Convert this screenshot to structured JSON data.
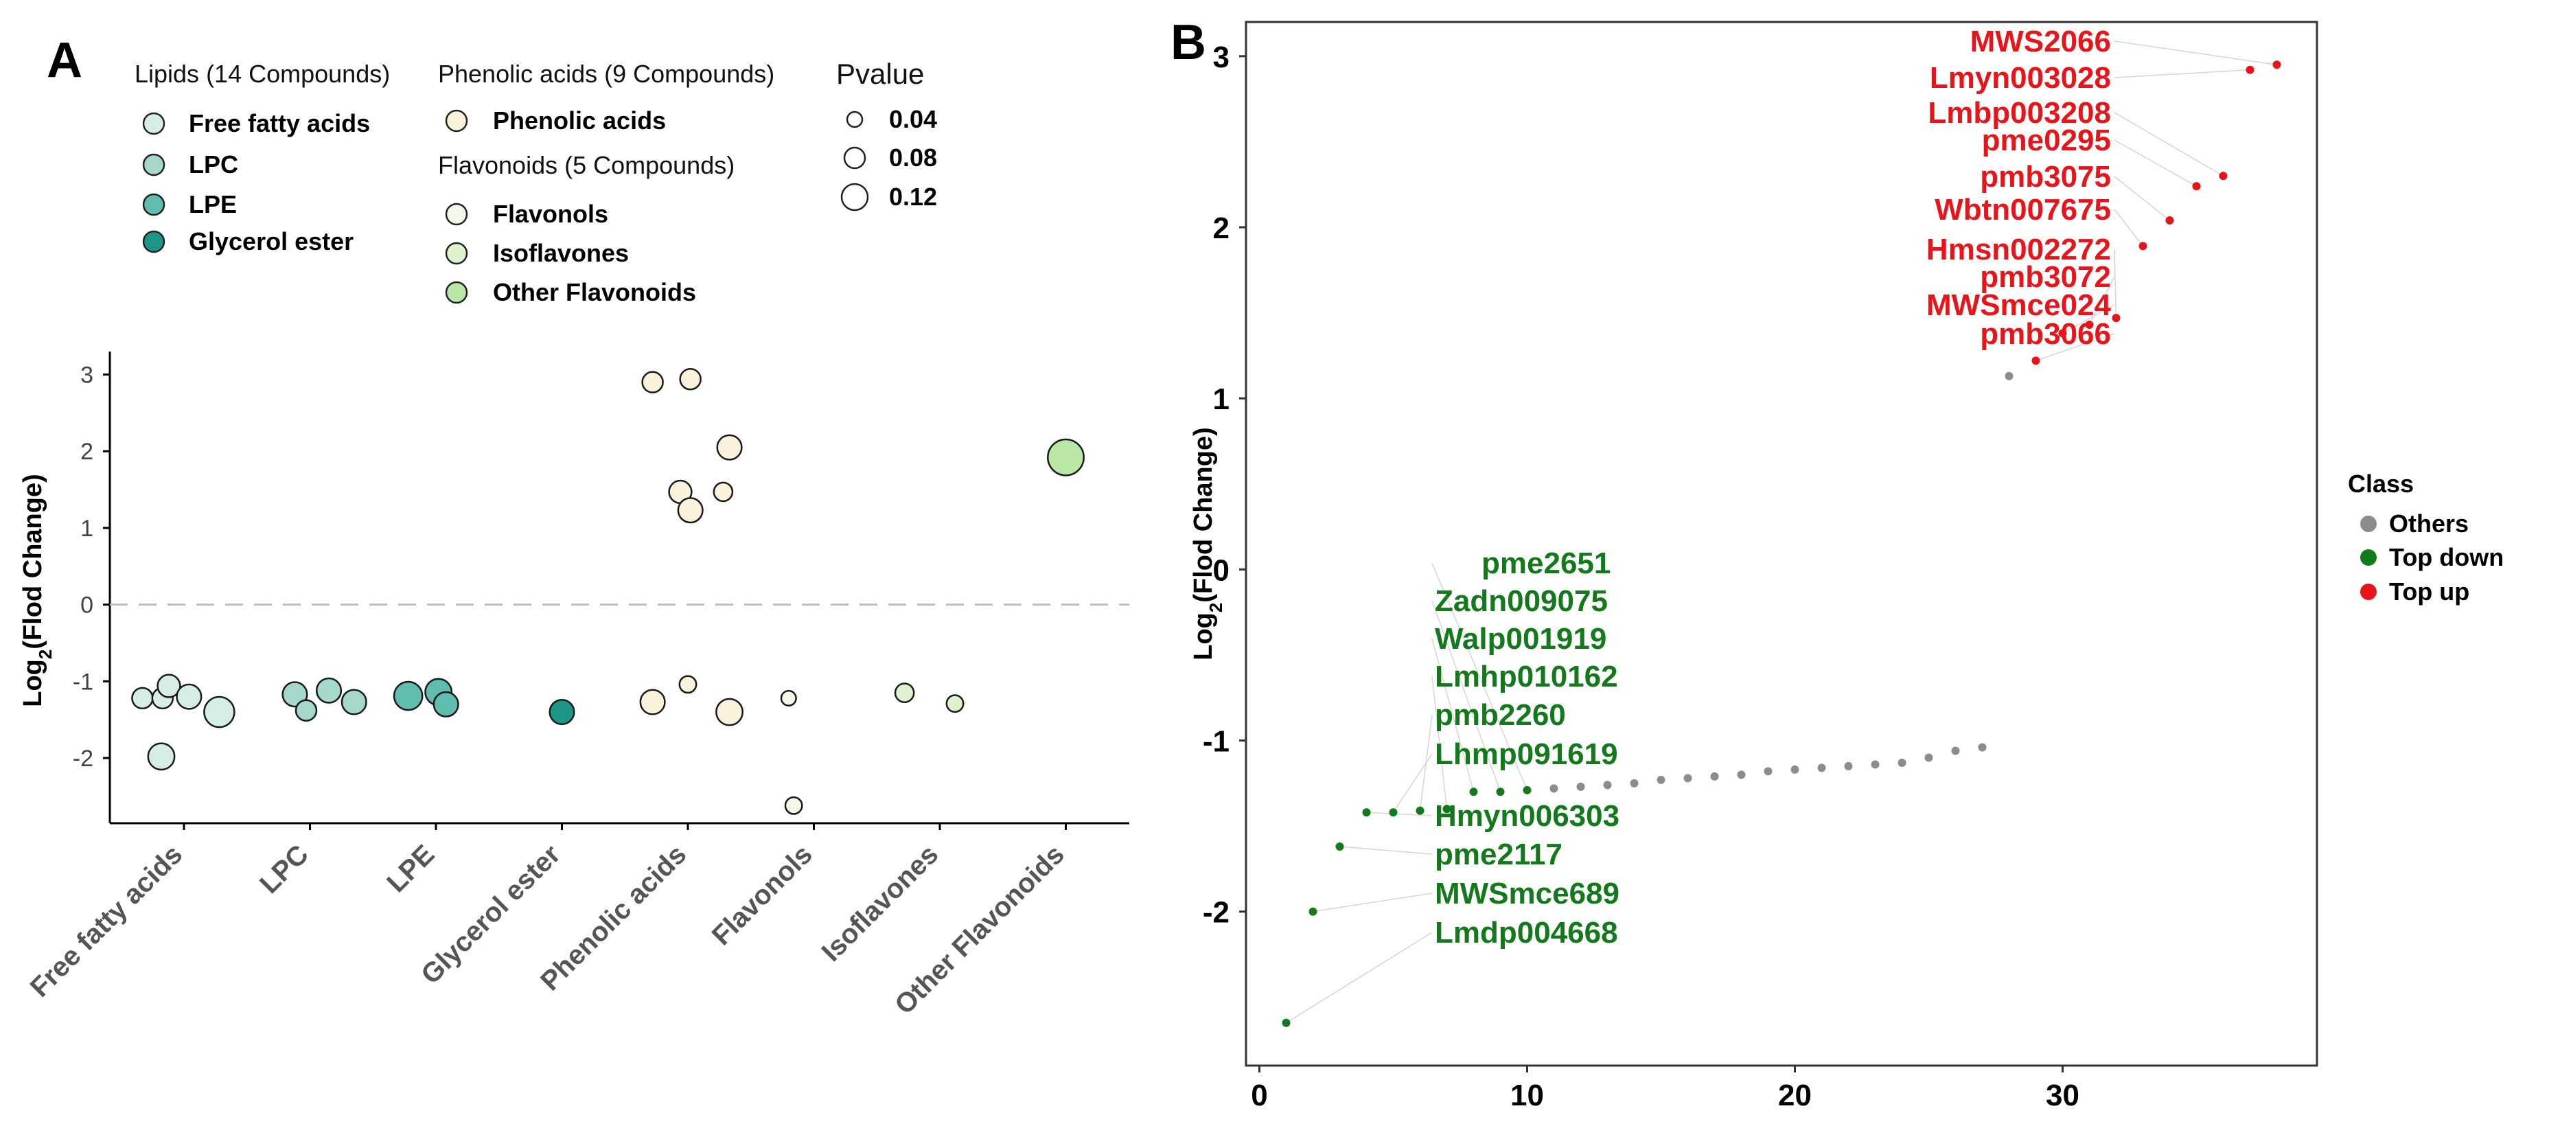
{
  "chart_data": [
    {
      "panel": "A",
      "type": "scatter",
      "ylabel": "Log2(Flod Change)",
      "ylabel_main": "Log",
      "ylabel_sub": "2",
      "ylabel_rest": "(Flod Change)",
      "ylim": [
        -2.85,
        3.3
      ],
      "yticks": [
        -2,
        -1,
        0,
        1,
        2,
        3
      ],
      "reference_line_y": 0,
      "categories": [
        "Free fatty acids",
        "LPC",
        "LPE",
        "Glycerol ester",
        "Phenolic acids",
        "Flavonols",
        "Isoflavones",
        "Other Flavonoids"
      ],
      "legend_groups": [
        {
          "title": "Lipids (14 Compounds)",
          "items": [
            {
              "label": "Free fatty acids",
              "color": "#d6ede6"
            },
            {
              "label": "LPC",
              "color": "#a6d7cc"
            },
            {
              "label": "LPE",
              "color": "#5fbcaf"
            },
            {
              "label": "Glycerol ester",
              "color": "#1c9687"
            }
          ]
        },
        {
          "title": "Phenolic acids (9 Compounds)",
          "items": [
            {
              "label": "Phenolic acids",
              "color": "#fbf2dc"
            }
          ]
        },
        {
          "title": "Flavonoids (5 Compounds)",
          "items": [
            {
              "label": "Flavonols",
              "color": "#f1f9ea"
            },
            {
              "label": "Isoflavones",
              "color": "#dff2cf"
            },
            {
              "label": "Other Flavonoids",
              "color": "#b9e7a5"
            }
          ]
        }
      ],
      "size_legend": {
        "title": "Pvalue",
        "items": [
          {
            "label": "0.04",
            "value": 0.04
          },
          {
            "label": "0.08",
            "value": 0.08
          },
          {
            "label": "0.12",
            "value": 0.12
          }
        ]
      },
      "points": [
        {
          "category": "Free fatty acids",
          "offset": -0.33,
          "y": -1.22,
          "p": 0.05,
          "color": "#d6ede6"
        },
        {
          "category": "Free fatty acids",
          "offset": -0.17,
          "y": -1.22,
          "p": 0.05,
          "color": "#d6ede6"
        },
        {
          "category": "Free fatty acids",
          "offset": -0.12,
          "y": -1.06,
          "p": 0.06,
          "color": "#d6ede6"
        },
        {
          "category": "Free fatty acids",
          "offset": 0.04,
          "y": -1.2,
          "p": 0.07,
          "color": "#d6ede6"
        },
        {
          "category": "Free fatty acids",
          "offset": 0.28,
          "y": -1.4,
          "p": 0.1,
          "color": "#d6ede6"
        },
        {
          "category": "Free fatty acids",
          "offset": -0.18,
          "y": -1.98,
          "p": 0.08,
          "color": "#d6ede6"
        },
        {
          "category": "LPC",
          "offset": -0.12,
          "y": -1.17,
          "p": 0.07,
          "color": "#a6d7cc"
        },
        {
          "category": "LPC",
          "offset": -0.03,
          "y": -1.38,
          "p": 0.05,
          "color": "#a6d7cc"
        },
        {
          "category": "LPC",
          "offset": 0.15,
          "y": -1.12,
          "p": 0.07,
          "color": "#a6d7cc"
        },
        {
          "category": "LPC",
          "offset": 0.35,
          "y": -1.27,
          "p": 0.07,
          "color": "#a6d7cc"
        },
        {
          "category": "LPE",
          "offset": -0.22,
          "y": -1.19,
          "p": 0.09,
          "color": "#5fbcaf"
        },
        {
          "category": "LPE",
          "offset": 0.02,
          "y": -1.14,
          "p": 0.08,
          "color": "#5fbcaf"
        },
        {
          "category": "LPE",
          "offset": 0.08,
          "y": -1.3,
          "p": 0.07,
          "color": "#5fbcaf"
        },
        {
          "category": "Glycerol ester",
          "offset": 0.0,
          "y": -1.4,
          "p": 0.07,
          "color": "#1c9687"
        },
        {
          "category": "Phenolic acids",
          "offset": -0.28,
          "y": 2.9,
          "p": 0.05,
          "color": "#fbf2dc"
        },
        {
          "category": "Phenolic acids",
          "offset": 0.02,
          "y": 2.94,
          "p": 0.05,
          "color": "#fbf2dc"
        },
        {
          "category": "Phenolic acids",
          "offset": 0.33,
          "y": 2.05,
          "p": 0.07,
          "color": "#fbf2dc"
        },
        {
          "category": "Phenolic acids",
          "offset": -0.06,
          "y": 1.47,
          "p": 0.06,
          "color": "#fbf2dc"
        },
        {
          "category": "Phenolic acids",
          "offset": 0.28,
          "y": 1.47,
          "p": 0.04,
          "color": "#fbf2dc"
        },
        {
          "category": "Phenolic acids",
          "offset": 0.02,
          "y": 1.23,
          "p": 0.07,
          "color": "#fbf2dc"
        },
        {
          "category": "Phenolic acids",
          "offset": -0.28,
          "y": -1.27,
          "p": 0.07,
          "color": "#fbf2dc"
        },
        {
          "category": "Phenolic acids",
          "offset": 0.0,
          "y": -1.04,
          "p": 0.03,
          "color": "#fbf2dc"
        },
        {
          "category": "Phenolic acids",
          "offset": 0.33,
          "y": -1.4,
          "p": 0.08,
          "color": "#fbf2dc"
        },
        {
          "category": "Flavonols",
          "offset": -0.2,
          "y": -1.22,
          "p": 0.02,
          "color": "#f1f9ea"
        },
        {
          "category": "Flavonols",
          "offset": -0.16,
          "y": -2.62,
          "p": 0.03,
          "color": "#f1f9ea"
        },
        {
          "category": "Isoflavones",
          "offset": -0.28,
          "y": -1.15,
          "p": 0.04,
          "color": "#dff2cf"
        },
        {
          "category": "Isoflavones",
          "offset": 0.12,
          "y": -1.29,
          "p": 0.03,
          "color": "#dff2cf"
        },
        {
          "category": "Other Flavonoids",
          "offset": 0.0,
          "y": 1.92,
          "p": 0.13,
          "color": "#b9e7a5"
        }
      ]
    },
    {
      "panel": "B",
      "type": "scatter",
      "ylabel": "Log2(Flod Change)",
      "ylabel_main": "Log",
      "ylabel_sub": "2",
      "ylabel_rest": "(Flod Change)",
      "xlim": [
        -0.5,
        39.5
      ],
      "ylim": [
        -2.9,
        3.2
      ],
      "xticks": [
        0,
        10,
        20,
        30
      ],
      "yticks": [
        -2,
        -1,
        0,
        1,
        2,
        3
      ],
      "legend": {
        "title": "Class",
        "items": [
          {
            "label": "Others",
            "color": "#8c8c8c"
          },
          {
            "label": "Top down",
            "color": "#137a1c"
          },
          {
            "label": "Top up",
            "color": "#e8141a"
          }
        ]
      },
      "series": [
        {
          "name": "Top down",
          "color": "#137a1c",
          "points": [
            {
              "x": 1,
              "y": -2.65
            },
            {
              "x": 2,
              "y": -2.0
            },
            {
              "x": 3,
              "y": -1.62
            },
            {
              "x": 4,
              "y": -1.42
            },
            {
              "x": 5,
              "y": -1.42
            },
            {
              "x": 6,
              "y": -1.41
            },
            {
              "x": 7,
              "y": -1.4
            },
            {
              "x": 8,
              "y": -1.3
            },
            {
              "x": 9,
              "y": -1.3
            },
            {
              "x": 10,
              "y": -1.29
            }
          ]
        },
        {
          "name": "Others",
          "color": "#8c8c8c",
          "points": [
            {
              "x": 11,
              "y": -1.28
            },
            {
              "x": 12,
              "y": -1.27
            },
            {
              "x": 13,
              "y": -1.26
            },
            {
              "x": 14,
              "y": -1.25
            },
            {
              "x": 15,
              "y": -1.23
            },
            {
              "x": 16,
              "y": -1.22
            },
            {
              "x": 17,
              "y": -1.21
            },
            {
              "x": 18,
              "y": -1.2
            },
            {
              "x": 19,
              "y": -1.18
            },
            {
              "x": 20,
              "y": -1.17
            },
            {
              "x": 21,
              "y": -1.16
            },
            {
              "x": 22,
              "y": -1.15
            },
            {
              "x": 23,
              "y": -1.14
            },
            {
              "x": 24,
              "y": -1.13
            },
            {
              "x": 25,
              "y": -1.1
            },
            {
              "x": 26,
              "y": -1.06
            },
            {
              "x": 27,
              "y": -1.04
            },
            {
              "x": 28,
              "y": 1.13
            }
          ]
        },
        {
          "name": "Top up",
          "color": "#e8141a",
          "points": [
            {
              "x": 29,
              "y": 1.22
            },
            {
              "x": 30,
              "y": 1.38
            },
            {
              "x": 31,
              "y": 1.43
            },
            {
              "x": 32,
              "y": 1.47
            },
            {
              "x": 33,
              "y": 1.89
            },
            {
              "x": 34,
              "y": 2.04
            },
            {
              "x": 35,
              "y": 2.24
            },
            {
              "x": 36,
              "y": 2.3
            },
            {
              "x": 37,
              "y": 2.92
            },
            {
              "x": 38,
              "y": 2.95
            }
          ]
        }
      ],
      "labels_down": [
        {
          "text": "pme2651",
          "point_x": 10
        },
        {
          "text": "Zadn009075",
          "point_x": 9
        },
        {
          "text": "Walp001919",
          "point_x": 8
        },
        {
          "text": "Lmhp010162",
          "point_x": 7
        },
        {
          "text": "pmb2260",
          "point_x": 6
        },
        {
          "text": "Lhmp091619",
          "point_x": 5
        },
        {
          "text": "Hmyn006303",
          "point_x": 4
        },
        {
          "text": "pme2117",
          "point_x": 3
        },
        {
          "text": "MWSmce689",
          "point_x": 2
        },
        {
          "text": "Lmdp004668",
          "point_x": 1
        }
      ],
      "labels_up": [
        {
          "text": "MWS2066",
          "point_x": 38
        },
        {
          "text": "Lmyn003028",
          "point_x": 37
        },
        {
          "text": "Lmbp003208",
          "point_x": 36
        },
        {
          "text": "pme0295",
          "point_x": 35
        },
        {
          "text": "pmb3075",
          "point_x": 34
        },
        {
          "text": "Wbtn007675",
          "point_x": 33
        },
        {
          "text": "Hmsn002272",
          "point_x": 32
        },
        {
          "text": "pmb3072",
          "point_x": 31
        },
        {
          "text": "MWSmce024",
          "point_x": 30
        },
        {
          "text": "pmb3066",
          "point_x": 29
        }
      ]
    }
  ],
  "panel_labels": {
    "a": "A",
    "b": "B"
  }
}
